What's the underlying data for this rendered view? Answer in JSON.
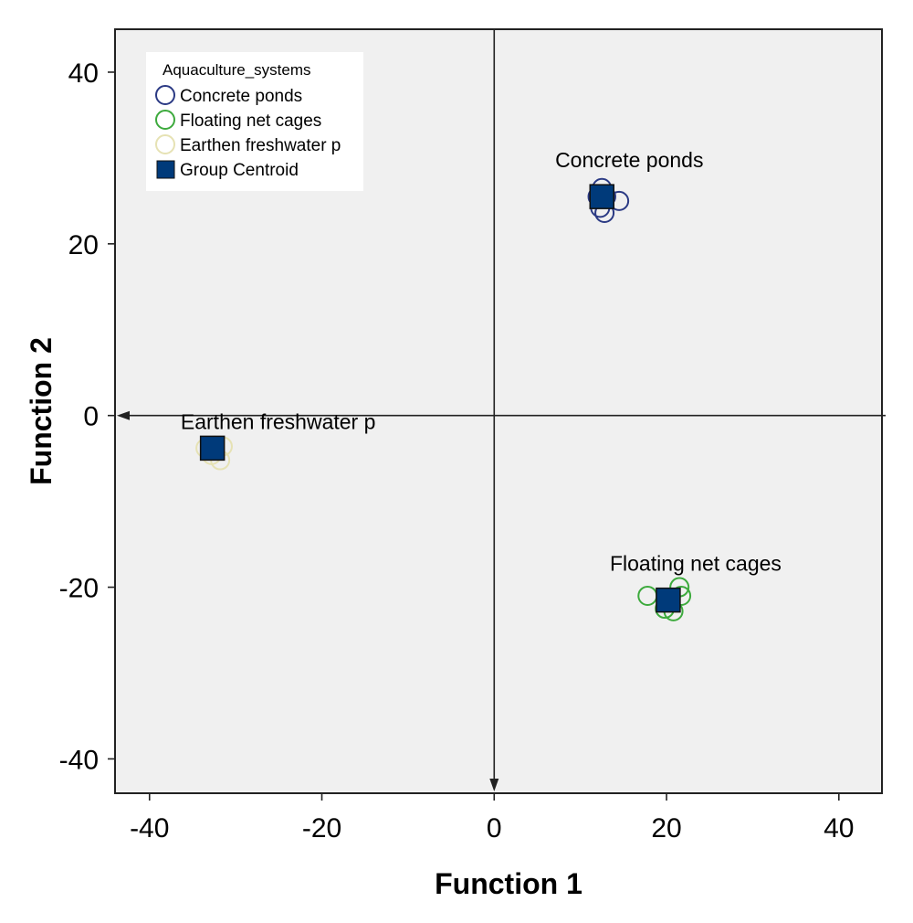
{
  "chart_data": {
    "type": "scatter",
    "xlabel": "Function 1",
    "ylabel": "Function 2",
    "xlim": [
      -44,
      45
    ],
    "ylim": [
      -44,
      45
    ],
    "xticks": [
      -40,
      -20,
      0,
      20,
      40
    ],
    "yticks": [
      40,
      20,
      0,
      -20,
      -40
    ],
    "grid": false,
    "legend": {
      "title": "Aquaculture_systems",
      "placement": "top-left",
      "entries": [
        {
          "label": "Concrete ponds",
          "marker": "circle",
          "color": "#2b3a84"
        },
        {
          "label": "Floating net cages",
          "marker": "circle",
          "color": "#3daa3d"
        },
        {
          "label": "Earthen freshwater p",
          "marker": "circle",
          "color": "#e6e2b4"
        },
        {
          "label": "Group Centroid",
          "marker": "square",
          "color": "#003a7a"
        }
      ]
    },
    "series": [
      {
        "name": "Concrete ponds",
        "color": "#2b3a84",
        "points": [
          [
            12.5,
            26.5
          ],
          [
            12,
            25.5
          ],
          [
            13,
            25.5
          ],
          [
            14.5,
            25
          ],
          [
            12.3,
            24.2
          ],
          [
            12.8,
            23.6
          ]
        ]
      },
      {
        "name": "Floating net cages",
        "color": "#3daa3d",
        "points": [
          [
            17.8,
            -21
          ],
          [
            21.5,
            -20
          ],
          [
            21.7,
            -21
          ],
          [
            19.8,
            -22.5
          ],
          [
            20.8,
            -22.8
          ]
        ]
      },
      {
        "name": "Earthen freshwater p",
        "color": "#e6e2b4",
        "points": [
          [
            -33.5,
            -3.8
          ],
          [
            -32.5,
            -3.5
          ],
          [
            -31.5,
            -3.6
          ],
          [
            -32.8,
            -4.6
          ],
          [
            -31.8,
            -5.2
          ]
        ]
      }
    ],
    "centroids": [
      {
        "label": "Concrete ponds",
        "x": 12.5,
        "y": 25.5
      },
      {
        "label": "Floating net cages",
        "x": 20.2,
        "y": -21.5
      },
      {
        "label": "Earthen freshwater p",
        "x": -32.7,
        "y": -3.8
      }
    ],
    "centroid_color": "#003a7a",
    "plot_background": "#f0f0f0"
  }
}
